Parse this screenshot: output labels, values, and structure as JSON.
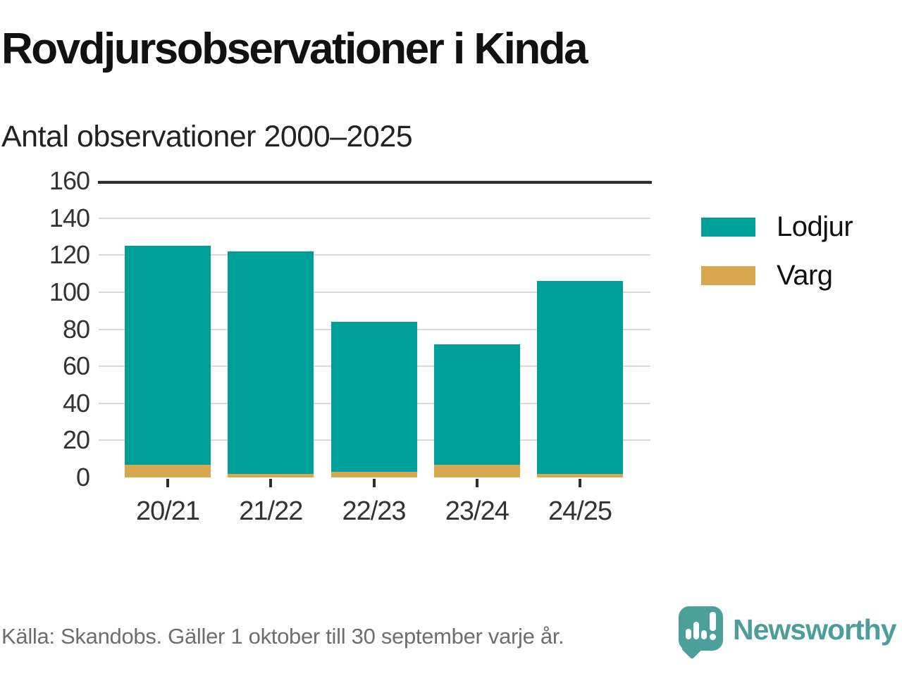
{
  "title": "Rovdjursobservationer i Kinda",
  "subtitle": "Antal observationer 2000–2025",
  "footer": {
    "source_note": "Källa: Skandobs. Gäller 1 oktober till 30 september varje år."
  },
  "branding": {
    "name": "Newsworthy",
    "logo_icon": "speech-bubble-bar-chart-exclamation-icon",
    "brand_color": "#4d9e98"
  },
  "colors": {
    "lodjur": "#00a09a",
    "varg": "#d8a850",
    "gridline": "#d9d9d9",
    "axis": "#2e2e2e",
    "title_text": "#111111",
    "axis_text": "#333333",
    "footer_text": "#6e6e6e"
  },
  "legend": {
    "position": "right",
    "items": [
      {
        "label": "Lodjur",
        "color": "#00a09a"
      },
      {
        "label": "Varg",
        "color": "#d8a850"
      }
    ]
  },
  "chart_data": {
    "type": "bar",
    "stacked": true,
    "title": "Rovdjursobservationer i Kinda",
    "subtitle": "Antal observationer 2000–2025",
    "xlabel": "",
    "ylabel": "",
    "categories": [
      "20/21",
      "21/22",
      "22/23",
      "23/24",
      "24/25"
    ],
    "series": [
      {
        "name": "Lodjur",
        "color": "#00a09a",
        "stack_order": "top",
        "values": [
          118,
          120,
          81,
          65,
          104
        ]
      },
      {
        "name": "Varg",
        "color": "#d8a850",
        "stack_order": "bottom",
        "values": [
          7,
          2,
          3,
          7,
          2
        ]
      }
    ],
    "stacked_totals": [
      125,
      122,
      84,
      72,
      106
    ],
    "ylim": [
      0,
      160
    ],
    "yticks": [
      0,
      20,
      40,
      60,
      80,
      100,
      120,
      140,
      160
    ],
    "grid": "horizontal",
    "legend_position": "right"
  }
}
